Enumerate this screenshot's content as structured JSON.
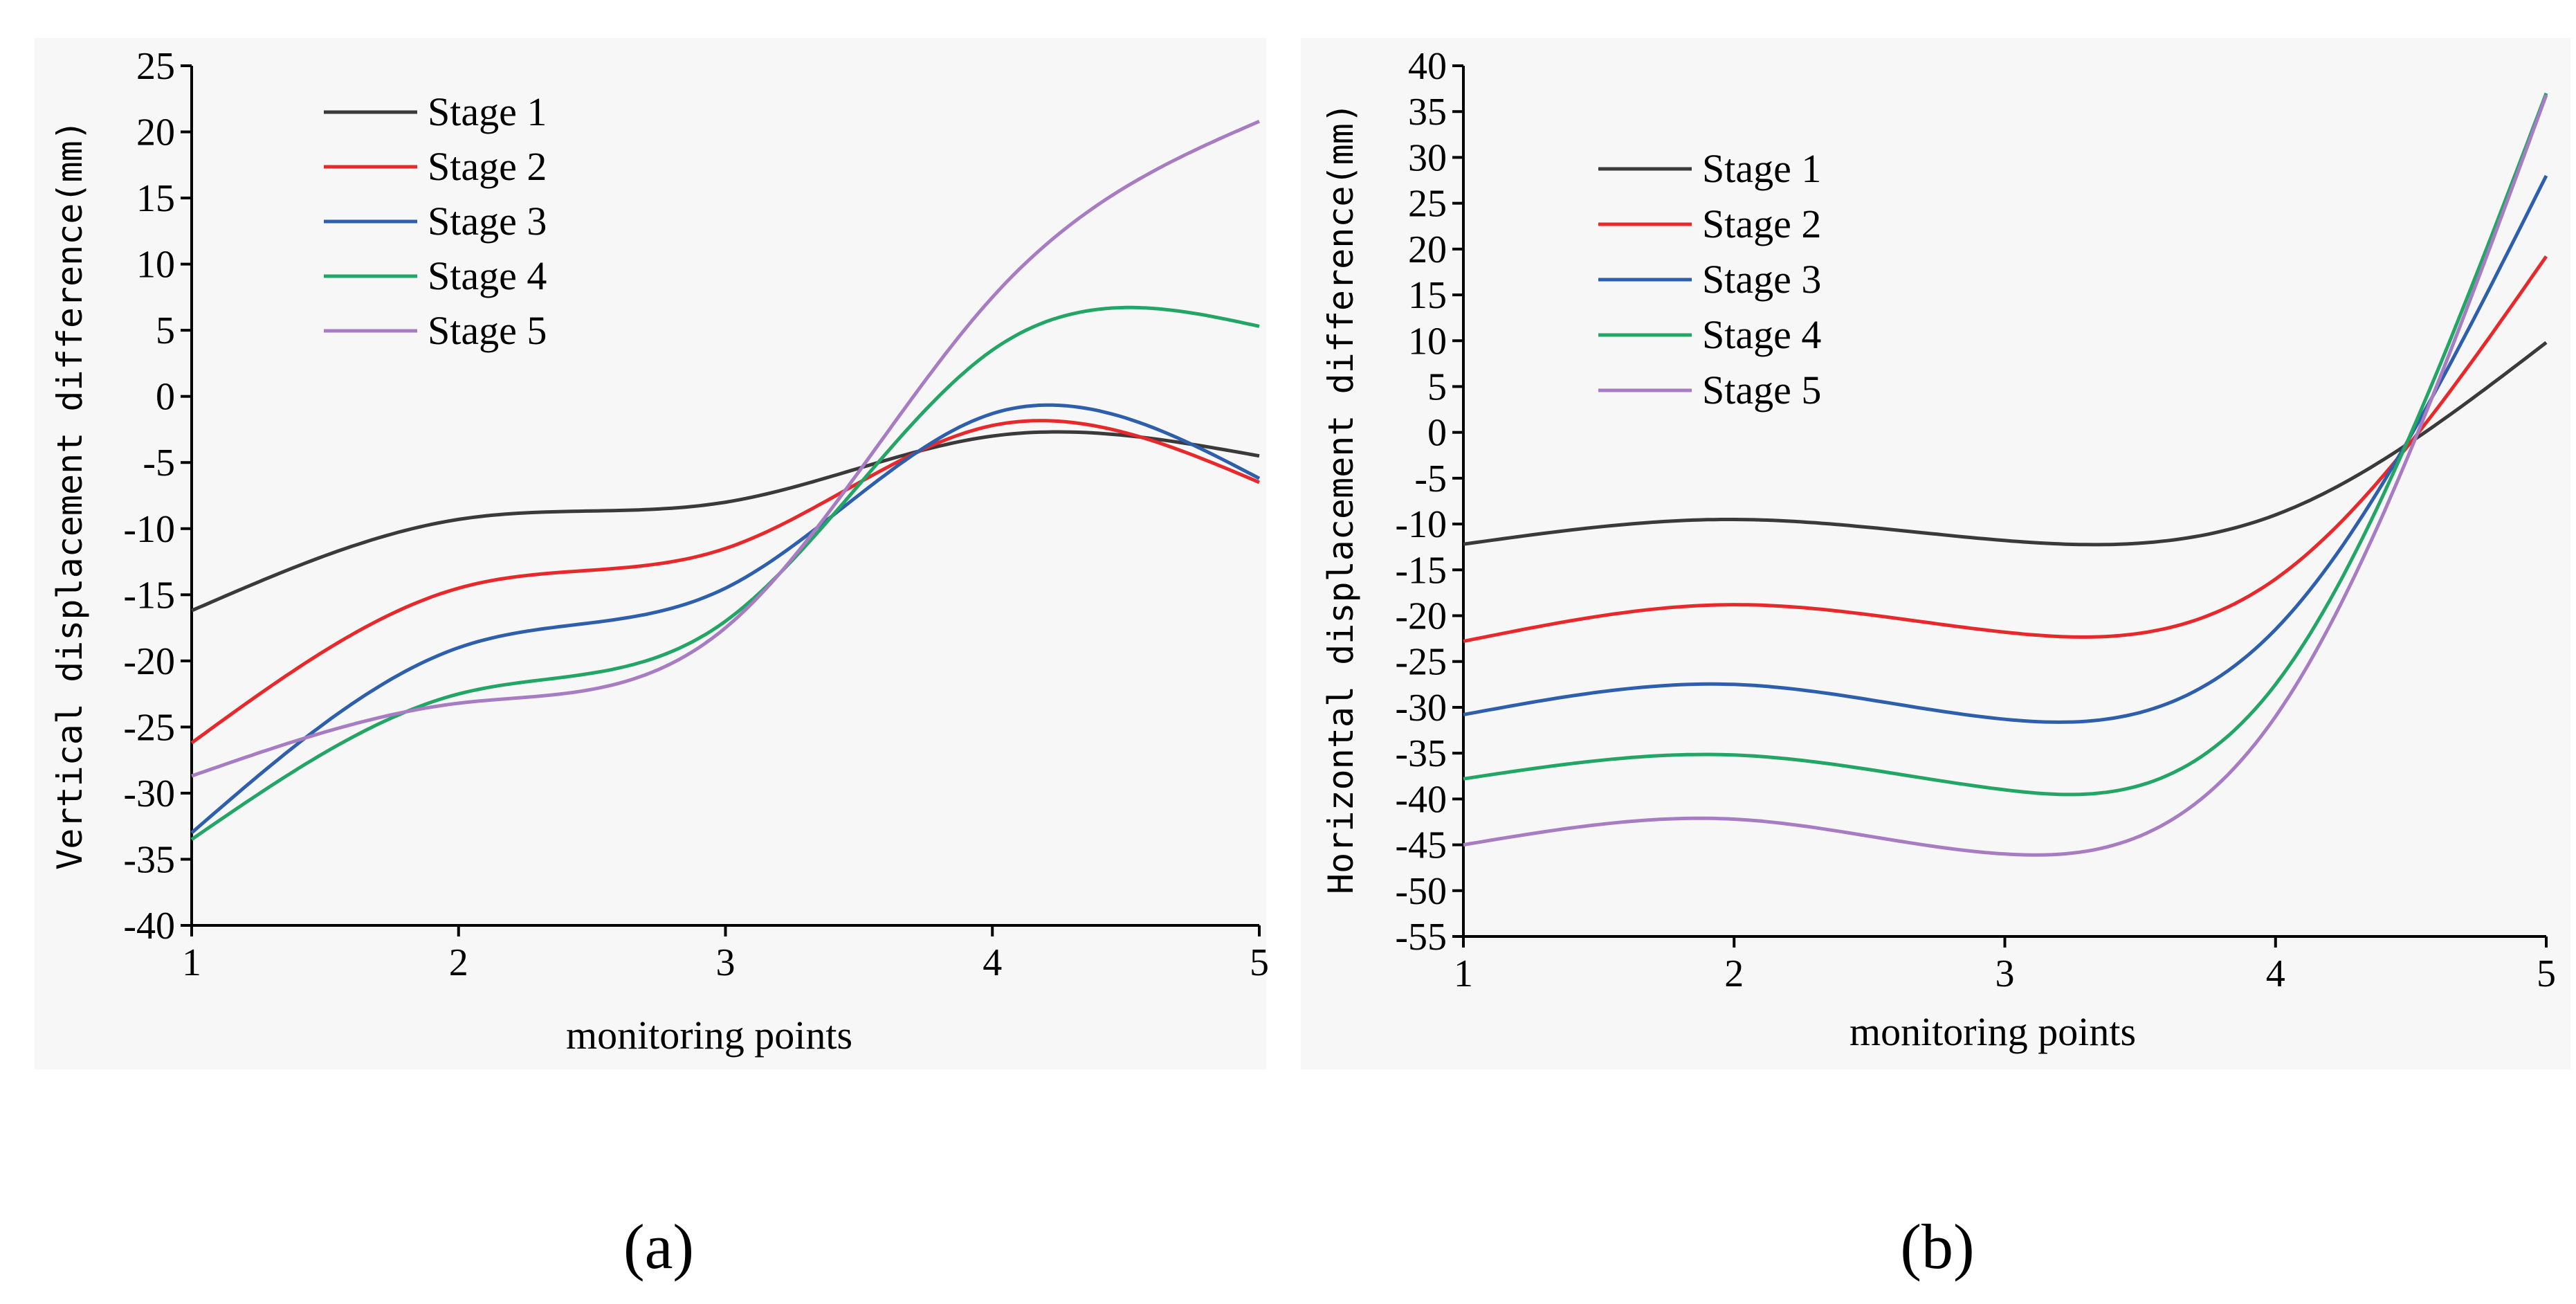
{
  "captions": [
    "(a)",
    "(b)"
  ],
  "colors": {
    "Stage 1": "#3a3a3a",
    "Stage 2": "#e8292b",
    "Stage 3": "#2e5fac",
    "Stage 4": "#23a665",
    "Stage 5": "#a77cc3"
  },
  "chart_data": [
    {
      "type": "line",
      "title": "",
      "xlabel": "monitoring points",
      "ylabel": "Vertical displacement difference(mm)",
      "x": [
        1,
        2,
        3,
        4,
        5
      ],
      "xlim": [
        1,
        5
      ],
      "ylim": [
        -40,
        25
      ],
      "xticks": [
        1,
        2,
        3,
        4,
        5
      ],
      "yticks": [
        25,
        20,
        15,
        10,
        5,
        0,
        -5,
        -10,
        -15,
        -20,
        -25,
        -30,
        -35,
        -40
      ],
      "grid": false,
      "legend_position": "top-left",
      "series": [
        {
          "name": "Stage 1",
          "values": [
            -16.2,
            -9.3,
            -8.0,
            -3.0,
            -4.5
          ]
        },
        {
          "name": "Stage 2",
          "values": [
            -26.2,
            -14.5,
            -11.5,
            -2.2,
            -6.5
          ]
        },
        {
          "name": "Stage 3",
          "values": [
            -33.0,
            -19.0,
            -14.5,
            -1.3,
            -6.2
          ]
        },
        {
          "name": "Stage 4",
          "values": [
            -33.5,
            -22.5,
            -17.0,
            3.5,
            5.3
          ]
        },
        {
          "name": "Stage 5",
          "values": [
            -28.7,
            -23.2,
            -17.5,
            7.5,
            20.8
          ]
        }
      ]
    },
    {
      "type": "line",
      "title": "",
      "xlabel": "monitoring points",
      "ylabel": "Horizontal displacement difference(mm)",
      "x": [
        1,
        2,
        3,
        4,
        5
      ],
      "xlim": [
        1,
        5
      ],
      "ylim": [
        -55,
        40
      ],
      "xticks": [
        1,
        2,
        3,
        4,
        5
      ],
      "yticks": [
        40,
        35,
        30,
        25,
        20,
        15,
        10,
        5,
        0,
        -5,
        -10,
        -15,
        -20,
        -25,
        -30,
        -35,
        -40,
        -45,
        -50,
        -55
      ],
      "grid": false,
      "legend_position": "top-left",
      "series": [
        {
          "name": "Stage 1",
          "values": [
            -12.2,
            -9.5,
            -11.8,
            -9.0,
            9.8
          ]
        },
        {
          "name": "Stage 2",
          "values": [
            -22.8,
            -18.8,
            -21.8,
            -16.0,
            19.2
          ]
        },
        {
          "name": "Stage 3",
          "values": [
            -30.8,
            -27.5,
            -31.3,
            -21.5,
            28.0
          ]
        },
        {
          "name": "Stage 4",
          "values": [
            -37.8,
            -35.2,
            -39.0,
            -27.5,
            37.0
          ]
        },
        {
          "name": "Stage 5",
          "values": [
            -45.0,
            -42.2,
            -46.0,
            -31.0,
            36.8
          ]
        }
      ]
    }
  ]
}
